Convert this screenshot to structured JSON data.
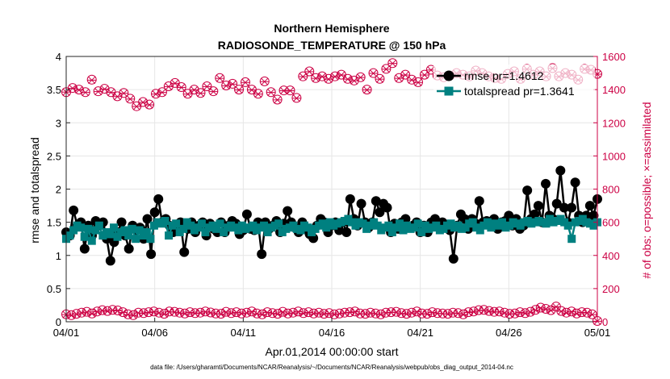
{
  "chart_data": {
    "type": "line",
    "title": "Northern Hemisphere",
    "subtitle": "RADIOSONDE_TEMPERATURE @ 150 hPa",
    "xlabel": "Apr.01,2014 00:00:00 start",
    "ylabel": "rmse and totalspread",
    "y2label": "# of obs: o=possible; ×=assimilated",
    "footer": "data file: /Users/gharamti/Documents/NCAR/Reanalysis/~/Documents/NCAR/Reanalysis/webpub/obs_diag_output_2014-04.nc",
    "xlim": [
      0,
      30
    ],
    "ylim": [
      0,
      4
    ],
    "y2lim": [
      0,
      1600
    ],
    "xticks": [
      0,
      5,
      10,
      15,
      20,
      25,
      30
    ],
    "xtick_labels": [
      "04/01",
      "04/06",
      "04/11",
      "04/16",
      "04/21",
      "04/26",
      "05/01"
    ],
    "yticks": [
      0,
      0.5,
      1,
      1.5,
      2,
      2.5,
      3,
      3.5,
      4
    ],
    "ytick_labels": [
      "0",
      "0.5",
      "1",
      "1.5",
      "2",
      "2.5",
      "3",
      "3.5",
      "4"
    ],
    "y2ticks": [
      0,
      200,
      400,
      600,
      800,
      1000,
      1200,
      1400,
      1600
    ],
    "y2tick_labels": [
      "0",
      "200",
      "400",
      "600",
      "800",
      "1000",
      "1200",
      "1400",
      "1600"
    ],
    "colors": {
      "rmse": "#000000",
      "spread": "#008080",
      "obs": "#cc0044",
      "grid": "#e6e6e6"
    },
    "legend": {
      "position": "top-right",
      "entries": [
        "rmse pr=1.4612",
        "totalspread pr=1.3641"
      ]
    },
    "series": [
      {
        "name": "rmse pr=1.4612",
        "axis": "left",
        "marker": "filled-circle",
        "values": [
          1.35,
          1.3,
          1.68,
          1.45,
          1.5,
          1.1,
          1.45,
          1.3,
          1.52,
          1.45,
          1.5,
          1.25,
          0.92,
          1.2,
          1.35,
          1.5,
          1.3,
          1.1,
          1.45,
          1.38,
          1.42,
          1.25,
          1.55,
          1.02,
          1.65,
          1.85,
          1.5,
          1.55,
          1.45,
          1.35,
          1.4,
          1.5,
          1.05,
          1.4,
          1.5,
          1.35,
          1.45,
          1.5,
          1.3,
          1.48,
          1.4,
          1.35,
          1.5,
          1.35,
          1.45,
          1.52,
          1.48,
          1.32,
          1.38,
          1.62,
          1.4,
          1.38,
          1.5,
          1.02,
          1.5,
          1.4,
          1.45,
          1.52,
          1.35,
          1.48,
          1.67,
          1.5,
          1.42,
          1.35,
          1.5,
          1.4,
          1.32,
          1.26,
          1.45,
          1.55,
          1.5,
          1.35,
          1.45,
          1.5,
          1.38,
          1.5,
          1.35,
          1.85,
          1.55,
          1.45,
          1.78,
          1.5,
          1.42,
          1.5,
          1.82,
          1.65,
          1.78,
          1.72,
          1.35,
          1.48,
          1.4,
          1.5,
          1.55,
          1.42,
          1.45,
          1.5,
          1.35,
          1.45,
          1.35,
          1.5,
          1.55,
          1.45,
          1.5,
          1.45,
          1.38,
          0.95,
          1.45,
          1.62,
          1.55,
          1.4,
          1.55,
          1.48,
          1.82,
          1.5,
          1.52,
          1.45,
          1.55,
          1.4,
          1.5,
          1.52,
          1.6,
          1.45,
          1.55,
          1.4,
          1.45,
          1.98,
          1.55,
          1.62,
          1.75,
          1.5,
          2.08,
          1.6,
          1.55,
          1.78,
          2.28,
          1.72,
          1.5,
          1.72,
          2.1,
          1.6,
          1.5,
          1.6,
          1.75,
          1.6,
          1.85
        ]
      },
      {
        "name": "totalspread pr=1.3641",
        "axis": "left",
        "marker": "filled-square",
        "values": [
          1.25,
          1.3,
          1.38,
          1.45,
          1.42,
          1.28,
          1.4,
          1.22,
          1.38,
          1.45,
          1.3,
          1.35,
          1.32,
          1.42,
          1.28,
          1.35,
          1.38,
          1.3,
          1.4,
          1.25,
          1.38,
          1.3,
          1.35,
          1.25,
          1.45,
          1.5,
          1.48,
          1.52,
          1.3,
          1.45,
          1.48,
          1.35,
          1.4,
          1.5,
          1.45,
          1.38,
          1.42,
          1.48,
          1.35,
          1.42,
          1.45,
          1.4,
          1.48,
          1.35,
          1.42,
          1.45,
          1.42,
          1.38,
          1.45,
          1.4,
          1.42,
          1.45,
          1.38,
          1.42,
          1.45,
          1.35,
          1.42,
          1.45,
          1.48,
          1.35,
          1.4,
          1.42,
          1.45,
          1.4,
          1.38,
          1.45,
          1.42,
          1.35,
          1.4,
          1.45,
          1.48,
          1.42,
          1.5,
          1.45,
          1.48,
          1.5,
          1.52,
          1.55,
          1.5,
          1.45,
          1.5,
          1.48,
          1.4,
          1.45,
          1.5,
          1.45,
          1.38,
          1.42,
          1.45,
          1.35,
          1.42,
          1.48,
          1.38,
          1.45,
          1.4,
          1.42,
          1.48,
          1.35,
          1.45,
          1.4,
          1.42,
          1.45,
          1.38,
          1.4,
          1.45,
          1.48,
          1.42,
          1.45,
          1.4,
          1.42,
          1.48,
          1.5,
          1.42,
          1.38,
          1.45,
          1.5,
          1.42,
          1.48,
          1.45,
          1.5,
          1.42,
          1.45,
          1.5,
          1.48,
          1.45,
          1.5,
          1.52,
          1.48,
          1.5,
          1.52,
          1.5,
          1.48,
          1.55,
          1.5,
          1.52,
          1.55,
          1.5,
          1.45,
          1.25,
          1.5,
          1.52,
          1.55,
          1.5,
          1.48,
          1.45,
          1.5
        ]
      },
      {
        "name": "possible obs (top band)",
        "axis": "right",
        "marker": "open-circle",
        "values": [
          1385,
          1410,
          1400,
          1385,
          1460,
          1390,
          1405,
          1385,
          1360,
          1380,
          1345,
          1300,
          1325,
          1310,
          1375,
          1385,
          1420,
          1440,
          1415,
          1375,
          1400,
          1380,
          1420,
          1390,
          1470,
          1425,
          1435,
          1400,
          1445,
          1400,
          1375,
          1450,
          1385,
          1340,
          1395,
          1395,
          1350,
          1480,
          1510,
          1470,
          1480,
          1465,
          1480,
          1490,
          1465,
          1455,
          1475,
          1400,
          1500,
          1465,
          1525,
          1560,
          1470,
          1490,
          1460,
          1445,
          1490,
          1520,
          1485,
          1475,
          1485,
          1500,
          1490,
          1480,
          1515,
          1500,
          1480,
          1470,
          1465,
          1495,
          1510,
          1465,
          1525,
          1490,
          1510,
          1480,
          1530,
          1480,
          1500,
          1490,
          1460,
          1525,
          1520,
          1495
        ]
      },
      {
        "name": "assimilated obs (top band)",
        "axis": "right",
        "marker": "x",
        "values": [
          1385,
          1408,
          1398,
          1383,
          1457,
          1388,
          1403,
          1383,
          1358,
          1378,
          1343,
          1298,
          1323,
          1308,
          1373,
          1383,
          1418,
          1438,
          1413,
          1373,
          1398,
          1378,
          1418,
          1388,
          1468,
          1423,
          1433,
          1398,
          1443,
          1398,
          1373,
          1448,
          1383,
          1338,
          1393,
          1393,
          1348,
          1478,
          1508,
          1468,
          1478,
          1463,
          1478,
          1488,
          1463,
          1453,
          1473,
          1398,
          1498,
          1463,
          1523,
          1558,
          1468,
          1488,
          1458,
          1443,
          1488,
          1518,
          1483,
          1473,
          1483,
          1498,
          1488,
          1478,
          1513,
          1498,
          1478,
          1468,
          1463,
          1493,
          1508,
          1463,
          1523,
          1488,
          1508,
          1478,
          1528,
          1478,
          1498,
          1488,
          1458,
          1523,
          1518,
          1493
        ]
      },
      {
        "name": "possible obs (bottom band)",
        "axis": "right",
        "marker": "open-circle",
        "values": [
          45,
          40,
          48,
          55,
          60,
          50,
          62,
          70,
          65,
          72,
          68,
          58,
          45,
          40,
          55,
          52,
          58,
          62,
          55,
          48,
          62,
          60,
          55,
          50,
          58,
          52,
          55,
          62,
          56,
          50,
          48,
          60,
          52,
          58,
          50,
          55,
          62,
          50,
          45,
          58,
          52,
          48,
          60,
          50,
          55,
          62,
          52,
          58,
          50,
          55,
          48,
          52,
          45,
          50,
          55,
          58,
          62,
          50,
          48,
          55,
          50,
          45,
          55,
          58,
          60,
          52,
          48,
          55,
          62,
          50,
          48,
          58,
          52,
          50,
          48,
          55,
          52,
          45,
          58,
          62,
          70,
          72,
          65,
          60,
          62,
          55,
          48,
          50,
          58,
          52,
          60,
          72,
          85,
          78,
          70,
          92,
          65,
          55,
          62,
          50,
          58,
          55,
          45,
          5
        ]
      },
      {
        "name": "assimilated obs (bottom band)",
        "axis": "right",
        "marker": "x",
        "values": [
          43,
          38,
          46,
          53,
          58,
          48,
          60,
          68,
          63,
          70,
          66,
          56,
          43,
          38,
          53,
          50,
          56,
          60,
          53,
          46,
          60,
          58,
          53,
          48,
          56,
          50,
          53,
          60,
          54,
          48,
          46,
          58,
          50,
          56,
          48,
          53,
          60,
          48,
          43,
          56,
          50,
          46,
          58,
          48,
          53,
          60,
          50,
          56,
          48,
          53,
          46,
          50,
          43,
          48,
          53,
          56,
          60,
          48,
          46,
          53,
          48,
          43,
          53,
          56,
          58,
          50,
          46,
          53,
          60,
          48,
          46,
          56,
          50,
          48,
          46,
          53,
          50,
          43,
          56,
          60,
          68,
          70,
          63,
          58,
          60,
          53,
          46,
          48,
          56,
          50,
          58,
          70,
          83,
          76,
          68,
          90,
          63,
          53,
          60,
          48,
          56,
          53,
          43,
          3
        ]
      }
    ]
  }
}
